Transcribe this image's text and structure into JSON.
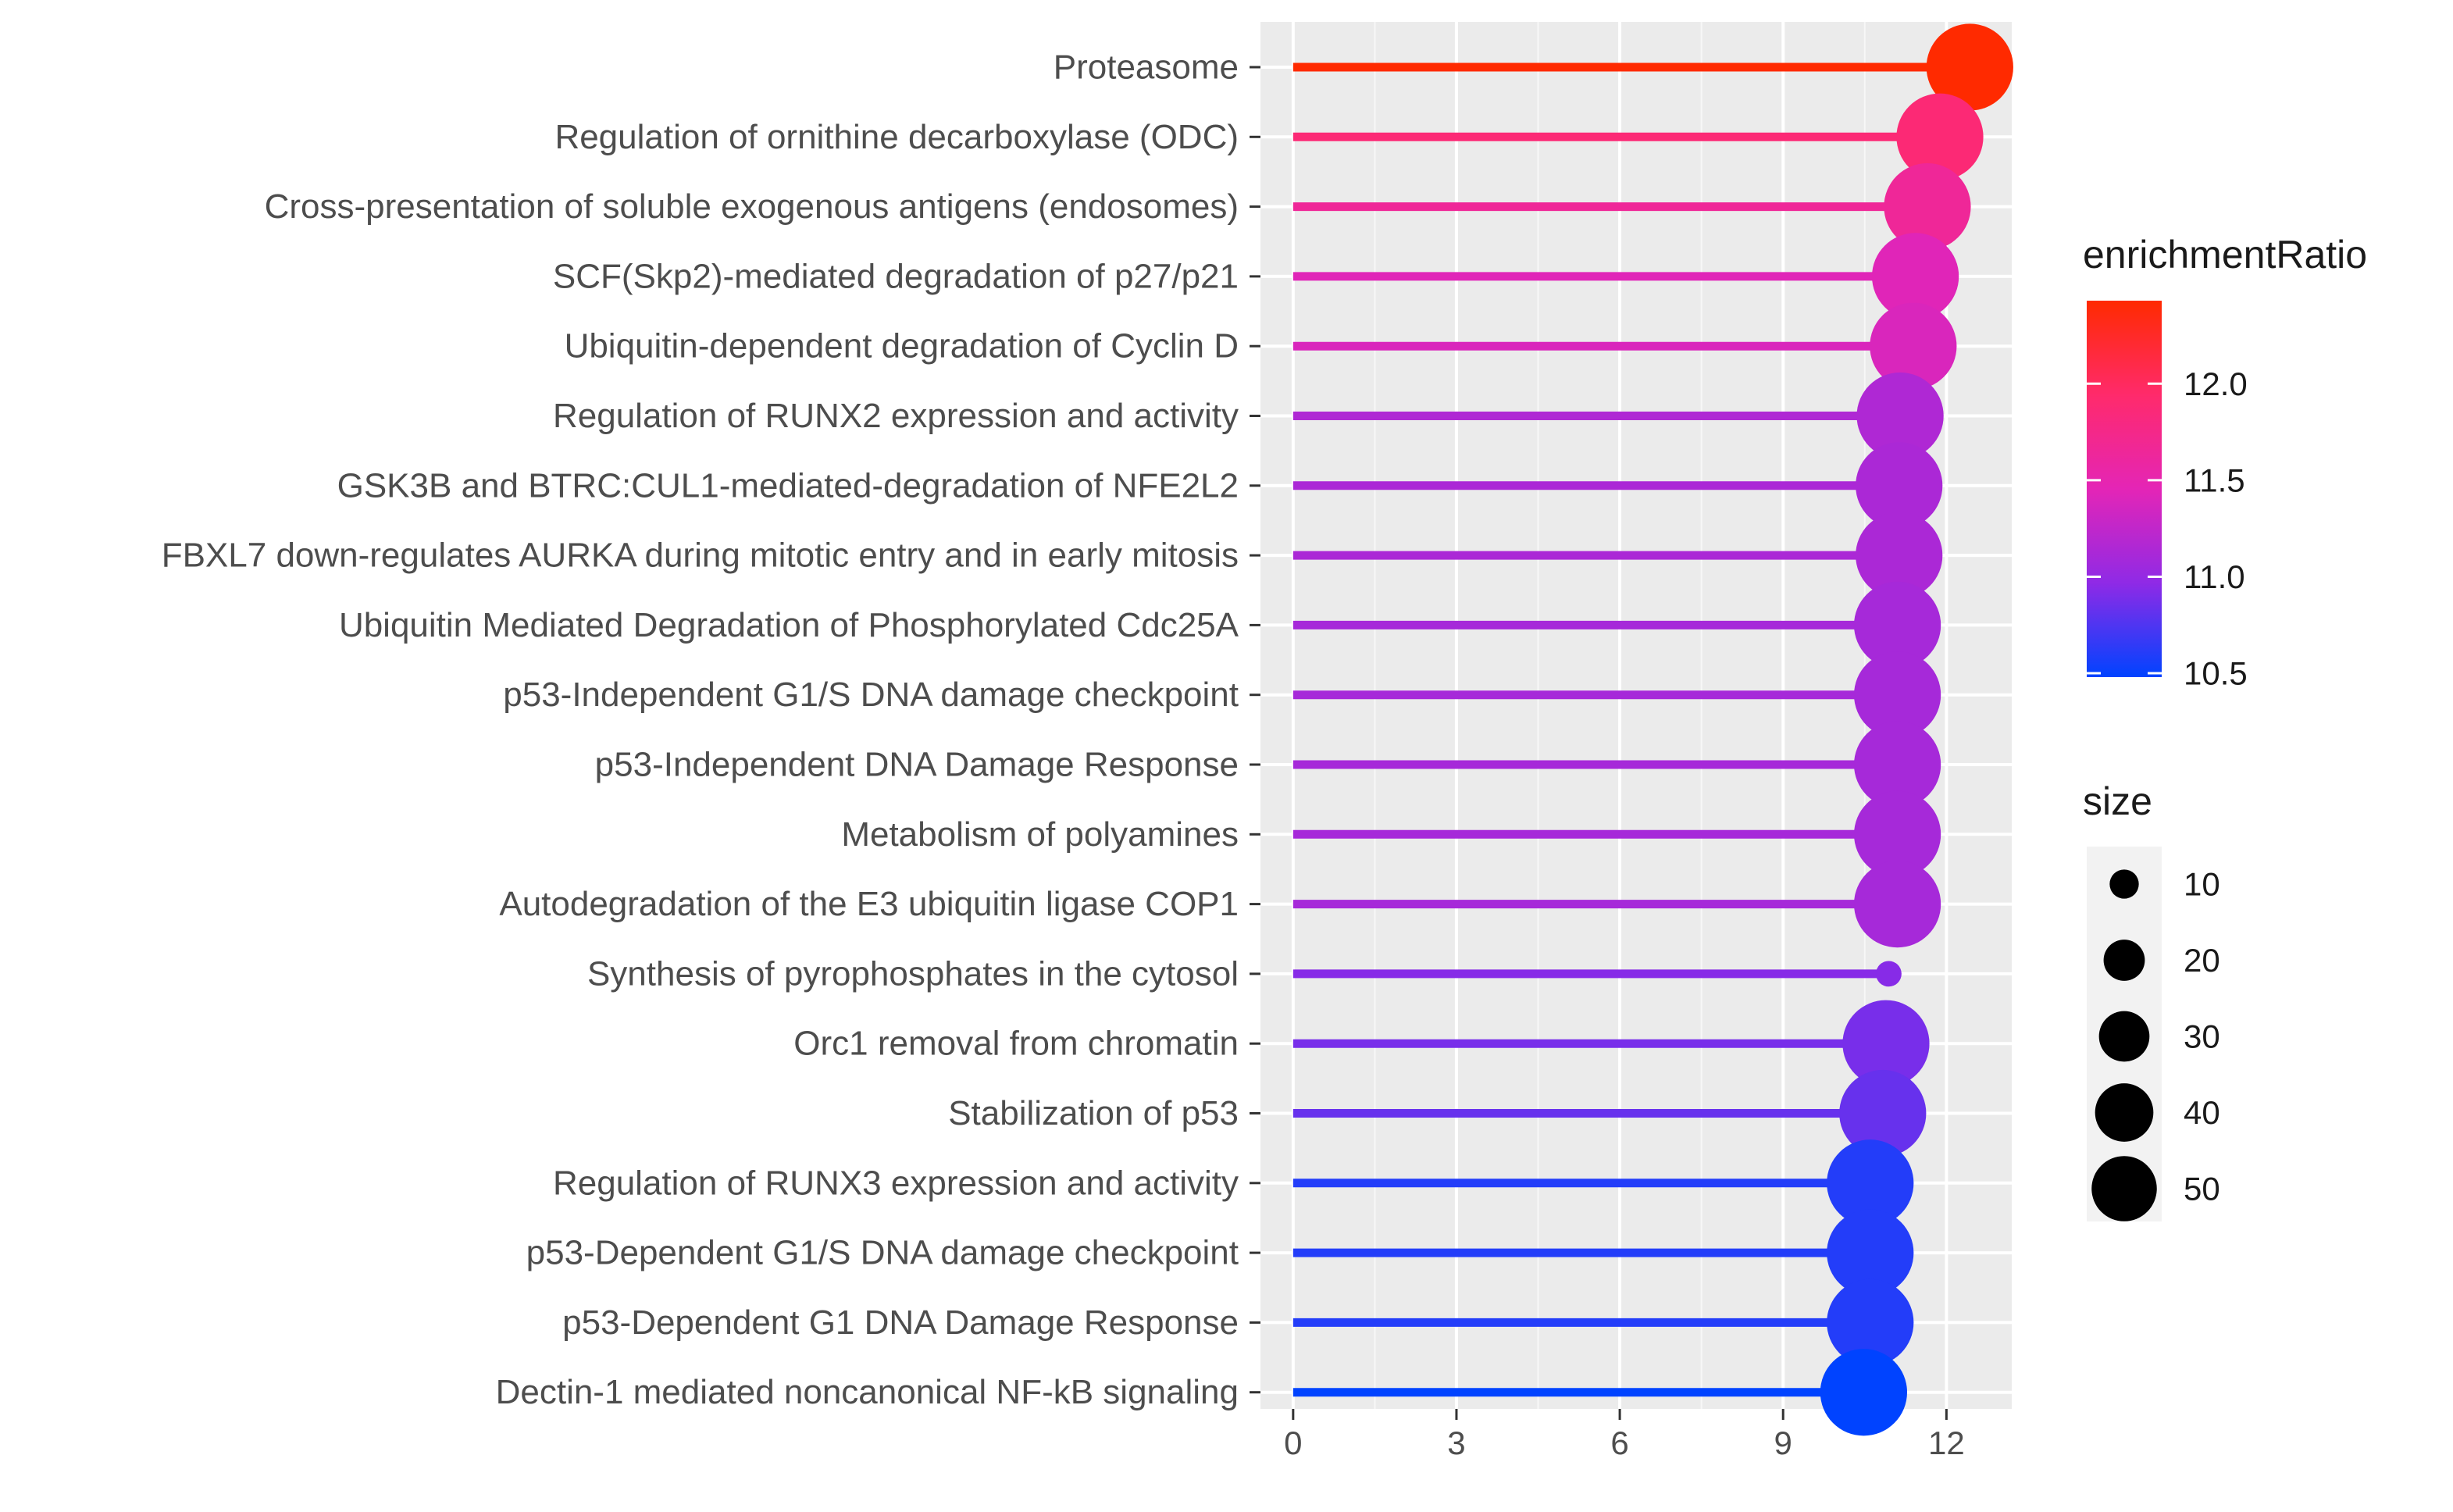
{
  "chart_data": {
    "type": "scatter",
    "subtype": "lollipop",
    "title": "",
    "xlabel": "",
    "ylabel": "",
    "xlim": [
      -0.6,
      13.2
    ],
    "x_ticks": [
      0,
      3,
      6,
      9,
      12
    ],
    "grid": true,
    "categories": [
      "Proteasome",
      "Regulation of ornithine decarboxylase (ODC)",
      "Cross-presentation of soluble exogenous antigens (endosomes)",
      "SCF(Skp2)-mediated degradation of p27/p21",
      "Ubiquitin-dependent degradation of Cyclin D",
      "Regulation of RUNX2 expression and activity",
      "GSK3B and BTRC:CUL1-mediated-degradation of NFE2L2",
      "FBXL7 down-regulates AURKA during mitotic entry and in early mitosis",
      "Ubiquitin Mediated Degradation of Phosphorylated Cdc25A",
      "p53-Independent G1/S DNA damage checkpoint",
      "p53-Independent DNA Damage Response",
      "Metabolism of polyamines",
      "Autodegradation of the E3 ubiquitin ligase COP1",
      "Synthesis of pyrophosphates in the cytosol",
      "Orc1 removal from chromatin",
      "Stabilization of p53",
      "Regulation of RUNX3 expression and activity",
      "p53-Dependent G1/S DNA damage checkpoint",
      "p53-Dependent G1 DNA Damage Response",
      "Dectin-1 mediated noncanonical NF-kB signaling"
    ],
    "values": [
      12.43,
      11.88,
      11.65,
      11.43,
      11.39,
      11.15,
      11.13,
      11.13,
      11.1,
      11.1,
      11.1,
      11.1,
      11.1,
      10.94,
      10.89,
      10.83,
      10.6,
      10.6,
      10.6,
      10.48
    ],
    "sizes": [
      46,
      46,
      46,
      46,
      46,
      46,
      46,
      46,
      46,
      46,
      46,
      46,
      46,
      4,
      46,
      46,
      46,
      46,
      46,
      46
    ],
    "color_legend": {
      "title": "enrichmentRatio",
      "ticks": [
        "10.5",
        "11.0",
        "11.5",
        "12.0"
      ],
      "tick_values": [
        10.5,
        11.0,
        11.5,
        12.0
      ],
      "range": [
        10.48,
        12.43
      ],
      "colors": [
        "#0043ff",
        "#8f2ae6",
        "#e425b6",
        "#ff2a6b",
        "#ff2a00"
      ]
    },
    "size_legend": {
      "title": "size",
      "labels": [
        "10",
        "20",
        "30",
        "40",
        "50"
      ],
      "values": [
        10,
        20,
        30,
        40,
        50
      ]
    },
    "panel_background": "#ebebeb",
    "grid_color": "#ffffff"
  }
}
